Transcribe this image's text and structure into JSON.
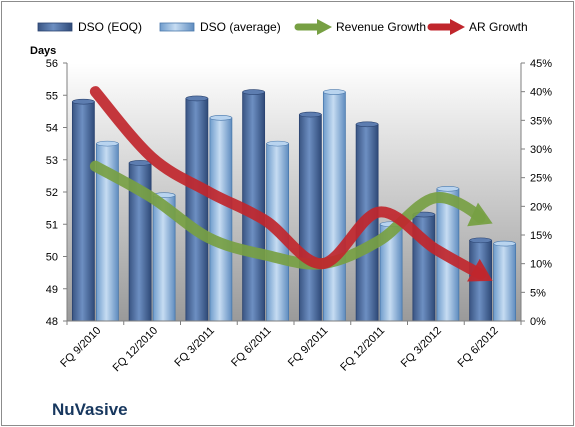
{
  "company_label": "NuVasive",
  "chart_data": {
    "type": "bar",
    "left_axis_title": "Days",
    "categories": [
      "FQ 9/2010",
      "FQ 12/2010",
      "FQ 3/2011",
      "FQ 6/2011",
      "FQ 9/2011",
      "FQ 12/2011",
      "FQ 3/2012",
      "FQ 6/2012"
    ],
    "bar_series": [
      {
        "name": "DSO (EOQ)",
        "color": "#4f6fa0",
        "values": [
          54.8,
          52.9,
          54.9,
          55.1,
          54.4,
          54.1,
          51.3,
          50.5
        ]
      },
      {
        "name": "DSO (average)",
        "color": "#9dc3e6",
        "values": [
          53.5,
          51.9,
          54.3,
          53.5,
          55.1,
          51.0,
          52.1,
          50.4
        ]
      }
    ],
    "line_series": [
      {
        "name": "Revenue Growth",
        "color": "#77a043",
        "values": [
          27,
          21.5,
          14.5,
          11.5,
          10,
          14,
          21.5,
          17
        ]
      },
      {
        "name": "AR Growth",
        "color": "#c0262c",
        "values": [
          40,
          28.5,
          22.5,
          17.5,
          10,
          19,
          12.5,
          7
        ]
      }
    ],
    "y_left": {
      "min": 48,
      "max": 56,
      "step": 1,
      "tick_labels": [
        "48",
        "49",
        "50",
        "51",
        "52",
        "53",
        "54",
        "55",
        "56"
      ]
    },
    "y_right": {
      "min": 0,
      "max": 45,
      "step": 5,
      "tick_labels": [
        "0%",
        "5%",
        "10%",
        "15%",
        "20%",
        "25%",
        "30%",
        "35%",
        "40%",
        "45%"
      ]
    },
    "legend_position": "top",
    "grid": false
  }
}
